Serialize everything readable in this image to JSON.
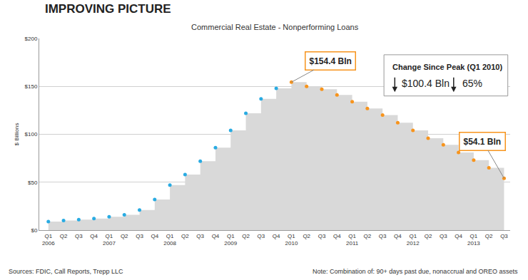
{
  "chart_data": {
    "type": "line",
    "title": "IMPROVING PICTURE",
    "subtitle": "Commercial Real Estate - Nonperforming Loans",
    "y_label": "$ Billions",
    "categories": [
      "Q1 2006",
      "Q2",
      "Q3",
      "Q4",
      "Q1 2007",
      "Q2",
      "Q3",
      "Q4",
      "Q1 2008",
      "Q2",
      "Q3",
      "Q4",
      "Q1 2009",
      "Q2",
      "Q3",
      "Q4",
      "Q1 2010",
      "Q2",
      "Q3",
      "Q4",
      "Q1 2011",
      "Q2",
      "Q3",
      "Q4",
      "Q1 2012",
      "Q2",
      "Q3",
      "Q4",
      "Q1 2013",
      "Q2",
      "Q3"
    ],
    "values": [
      9,
      10,
      11,
      12,
      14,
      16,
      21,
      32,
      47,
      58,
      72,
      86,
      104,
      122,
      137,
      148,
      154.4,
      150,
      147,
      141,
      134,
      127,
      120,
      112,
      104,
      96,
      89,
      81,
      73,
      65,
      54.1
    ],
    "colors": [
      "#29abe2",
      "#29abe2",
      "#29abe2",
      "#29abe2",
      "#29abe2",
      "#29abe2",
      "#29abe2",
      "#29abe2",
      "#29abe2",
      "#29abe2",
      "#29abe2",
      "#29abe2",
      "#29abe2",
      "#29abe2",
      "#29abe2",
      "#29abe2",
      "#f7941d",
      "#f7941d",
      "#f7941d",
      "#f7941d",
      "#f7941d",
      "#f7941d",
      "#f7941d",
      "#f7941d",
      "#f7941d",
      "#f7941d",
      "#f7941d",
      "#f7941d",
      "#f7941d",
      "#f7941d",
      "#f7941d"
    ],
    "marker": "circle",
    "line_style": "dotted",
    "ylim": [
      0,
      200
    ],
    "yticks": [
      {
        "value": 0,
        "label": "$0"
      },
      {
        "value": 50,
        "label": "$50"
      },
      {
        "value": 100,
        "label": "$100"
      },
      {
        "value": 150,
        "label": "$150"
      },
      {
        "value": 200,
        "label": "$200"
      }
    ],
    "grid": true,
    "peak_label": "$154.4 Bln",
    "last_label": "$54.1 Bln",
    "change_box": {
      "title": "Change Since Peak (Q1 2010)",
      "change": "$100.4 Bln",
      "percent": "65%"
    },
    "sources": "Sources: FDIC, Call Reports, Trepp LLC",
    "note": "Note: Combination of: 90+ days past due, nonaccrual and OREO assets"
  }
}
